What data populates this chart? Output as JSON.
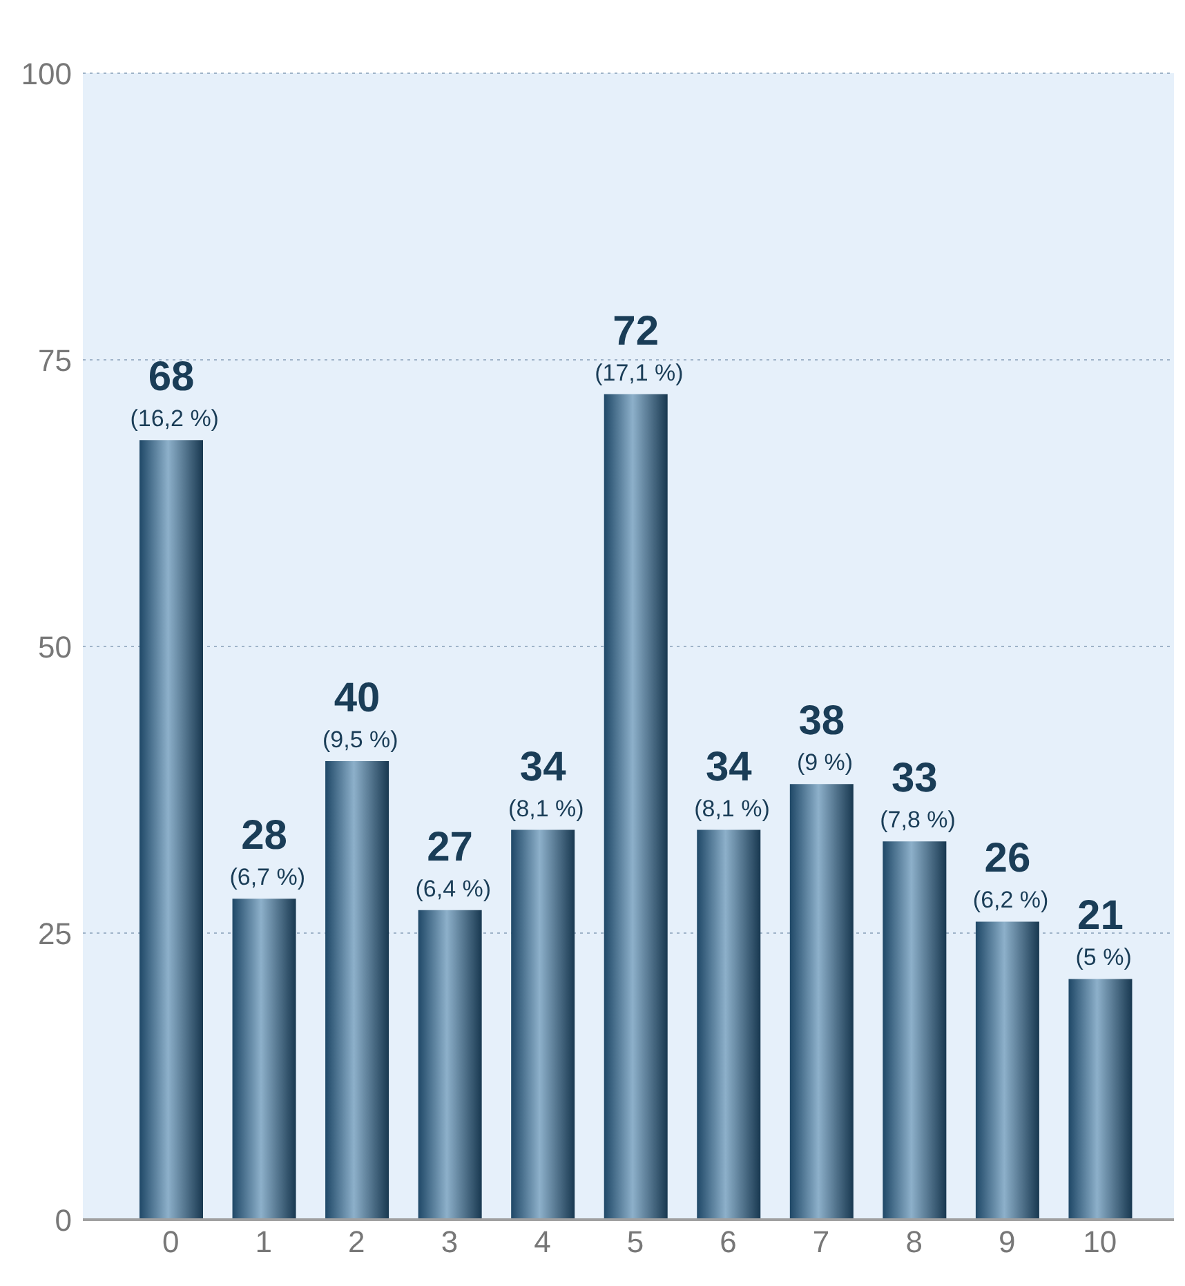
{
  "chart_data": {
    "type": "bar",
    "categories": [
      "0",
      "1",
      "2",
      "3",
      "4",
      "5",
      "6",
      "7",
      "8",
      "9",
      "10"
    ],
    "values": [
      68,
      28,
      40,
      27,
      34,
      72,
      34,
      38,
      33,
      26,
      21
    ],
    "value_labels": [
      "68 (16,2 %)",
      "28 (6,7 %)",
      "40 (9,5 %)",
      "27 (6,4 %)",
      "34 (8,1 %)",
      "72 (17,1 %)",
      "34 (8,1 %)",
      "38 (9 %)",
      "33 (7,8 %)",
      "26 (6,2 %)",
      "21 (5 %)"
    ],
    "color": "#2f6f9f",
    "ylim": [
      0,
      100
    ],
    "yticks": [
      0,
      25,
      50,
      75,
      100
    ],
    "grid": "y"
  }
}
